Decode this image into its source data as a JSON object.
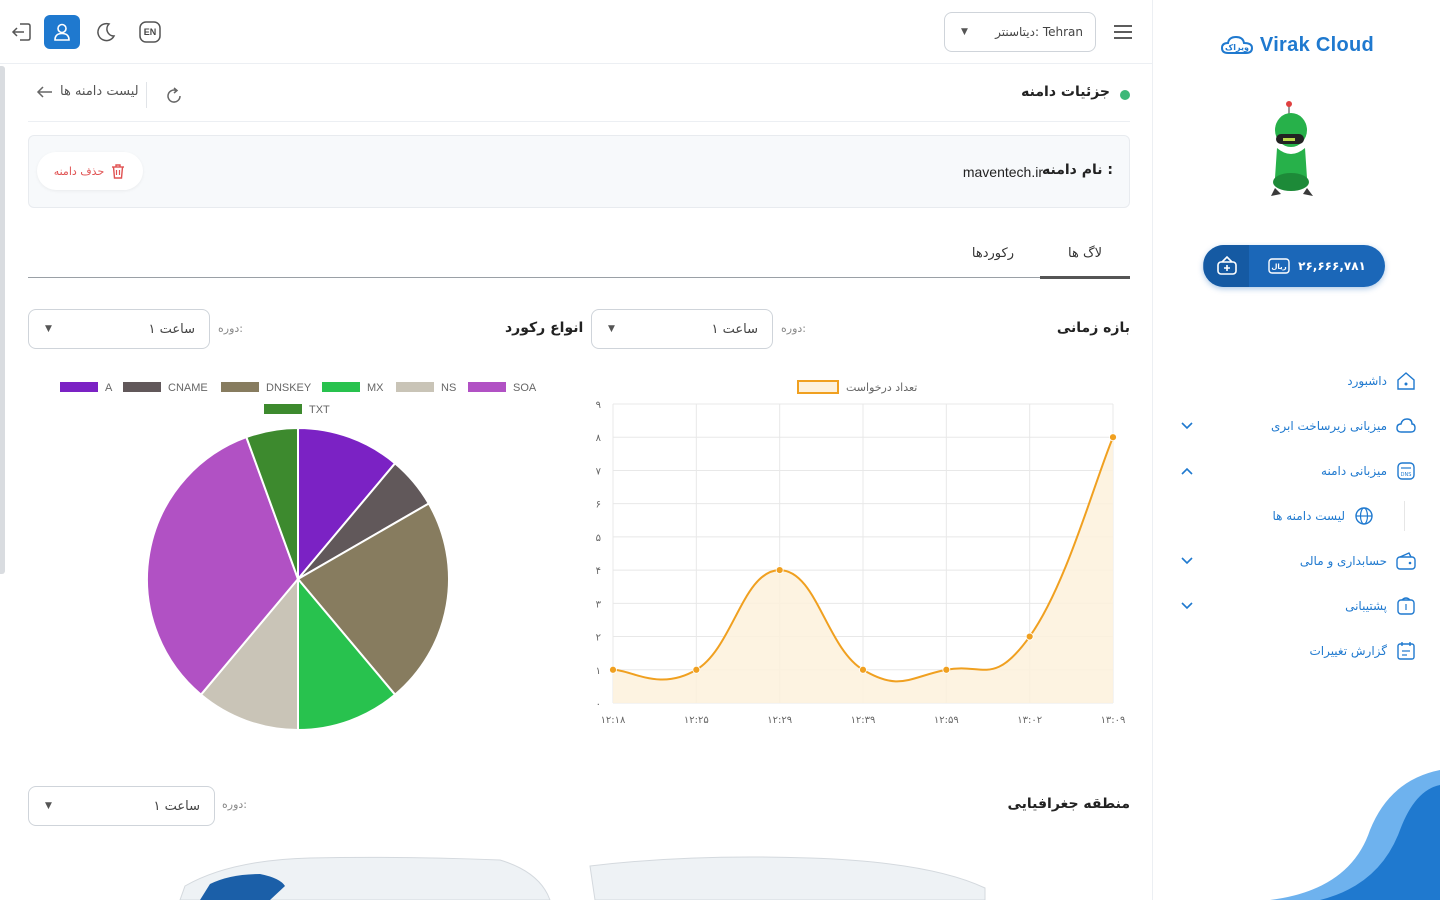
{
  "sidebar": {
    "brand": "Virak Cloud",
    "balance": "۲۶,۶۶۶,۷۸۱",
    "items": [
      {
        "label": "داشبورد",
        "icon": "home-icon",
        "chevron": ""
      },
      {
        "label": "میزبانی زیرساخت ابری",
        "icon": "cloud-icon",
        "chevron": "down"
      },
      {
        "label": "میزبانی دامنه",
        "icon": "dns-icon",
        "chevron": "up"
      },
      {
        "label": "لیست دامنه ها",
        "icon": "globe-icon",
        "chevron": "",
        "sub": true
      },
      {
        "label": "حسابداری و مالی",
        "icon": "wallet-icon",
        "chevron": "down"
      },
      {
        "label": "پشتیبانی",
        "icon": "support-icon",
        "chevron": "down"
      },
      {
        "label": "گزارش تغییرات",
        "icon": "changelog-icon",
        "chevron": ""
      }
    ]
  },
  "topbar": {
    "datacenter": "دیتاسنتر: Tehran",
    "lang": "EN"
  },
  "header": {
    "title": "جزئیات دامنه",
    "back": "لیست دامنه ها"
  },
  "domain": {
    "label": "نام دامنه :",
    "value": "maventech.ir",
    "delete": "حذف دامنه"
  },
  "tabs": {
    "logs": "لاگ ها",
    "records": "رکوردها"
  },
  "sections": {
    "time_range": {
      "title": "بازه زمانی",
      "period_label": "دوره:",
      "period_value": "۱ ساعت"
    },
    "record_types": {
      "title": "انواع رکورد",
      "period_label": "دوره:",
      "period_value": "۱ ساعت"
    },
    "geo": {
      "title": "منطقه جغرافیایی",
      "period_label": "دوره:",
      "period_value": "۱ ساعت"
    }
  },
  "chart_data": [
    {
      "type": "line",
      "legend": "تعداد درخواست",
      "color": "#f0a020",
      "categories": [
        "۱۲:۱۸",
        "۱۲:۲۵",
        "۱۲:۲۹",
        "۱۲:۳۹",
        "۱۲:۵۹",
        "۱۳:۰۲",
        "۱۳:۰۹"
      ],
      "values": [
        1,
        1,
        4,
        1,
        1,
        2,
        8
      ],
      "ylim": [
        0,
        9
      ],
      "yticks": [
        "۰",
        "۱",
        "۲",
        "۳",
        "۴",
        "۵",
        "۶",
        "۷",
        "۸",
        "۹"
      ],
      "grid": true
    },
    {
      "type": "pie",
      "legend_placement": "top",
      "slices": [
        {
          "name": "A",
          "value": 1,
          "color": "#7b22c4"
        },
        {
          "name": "CNAME",
          "value": 0.5,
          "color": "#61585a"
        },
        {
          "name": "DNSKEY",
          "value": 2,
          "color": "#877c5f"
        },
        {
          "name": "MX",
          "value": 1,
          "color": "#28c24e"
        },
        {
          "name": "NS",
          "value": 1,
          "color": "#c9c4b7"
        },
        {
          "name": "SOA",
          "value": 3,
          "color": "#b151c4"
        },
        {
          "name": "TXT",
          "value": 0.5,
          "color": "#3d8a2e"
        }
      ]
    }
  ]
}
